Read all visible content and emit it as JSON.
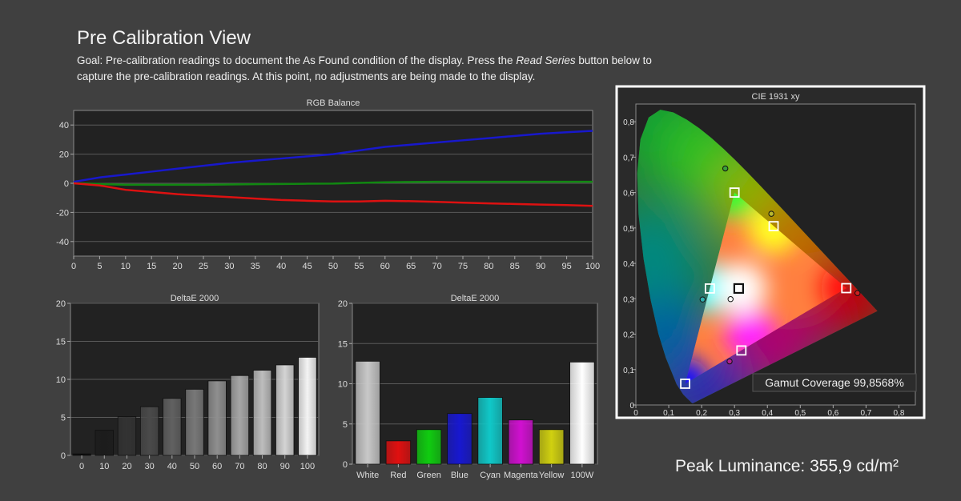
{
  "page": {
    "title": "Pre Calibration View",
    "goal_prefix": "Goal: Pre-calibration readings to document the As Found condition of the display. Press the ",
    "goal_emphasis": "Read Series",
    "goal_suffix": " button below to capture the pre-calibration readings. At this point, no adjustments are being made to the display.",
    "peak_luminance": "Peak Luminance: 355,9 cd/m²"
  },
  "colors": {
    "background": "#404040",
    "plot_bg": "#222222",
    "red": "#dd1111",
    "green": "#118811",
    "blue": "#1818cc"
  },
  "chart_data": [
    {
      "id": "rgb",
      "type": "line",
      "title": "RGB Balance",
      "x": [
        0,
        5,
        10,
        15,
        20,
        25,
        30,
        35,
        40,
        45,
        50,
        55,
        60,
        65,
        70,
        75,
        80,
        85,
        90,
        95,
        100
      ],
      "xticks": [
        0,
        5,
        10,
        15,
        20,
        25,
        30,
        35,
        40,
        45,
        50,
        55,
        60,
        65,
        70,
        75,
        80,
        85,
        90,
        95,
        100
      ],
      "xlim": [
        0,
        100
      ],
      "ylim": [
        -50,
        50
      ],
      "yticks": [
        40,
        20,
        0,
        -20,
        -40
      ],
      "ytick_labels": [
        "40",
        "20",
        "0",
        "-20",
        "-40"
      ],
      "grid": true,
      "series": [
        {
          "color": "#1818cc",
          "values": [
            1,
            4,
            6,
            8,
            10,
            12,
            14,
            15.5,
            17,
            18.5,
            20,
            22.5,
            25,
            26.5,
            28,
            29.5,
            31,
            32.5,
            34,
            35,
            36
          ]
        },
        {
          "color": "#118811",
          "values": [
            0,
            -0.5,
            -1,
            -1,
            -1,
            -1,
            -0.8,
            -0.6,
            -0.5,
            -0.3,
            -0.2,
            0.3,
            0.7,
            0.9,
            1,
            1,
            1,
            1,
            1,
            1,
            1
          ]
        },
        {
          "color": "#dd1111",
          "values": [
            0,
            -1.5,
            -4.5,
            -6,
            -7.5,
            -8.5,
            -9.5,
            -10.5,
            -11.5,
            -12,
            -12.5,
            -12.5,
            -12,
            -12.3,
            -12.8,
            -13.3,
            -13.8,
            -14.2,
            -14.6,
            -15,
            -15.5
          ]
        }
      ]
    },
    {
      "id": "grey",
      "type": "bar",
      "title": "DeltaE 2000",
      "categories": [
        "0",
        "10",
        "20",
        "30",
        "40",
        "50",
        "60",
        "70",
        "80",
        "90",
        "100"
      ],
      "values": [
        0.2,
        3.3,
        5.1,
        6.4,
        7.5,
        8.7,
        9.8,
        10.5,
        11.2,
        11.9,
        12.9
      ],
      "bar_colors": [
        "#080808",
        "#1c1c1c",
        "#333333",
        "#4a4a4a",
        "#616161",
        "#787878",
        "#8f8f8f",
        "#a6a6a6",
        "#bdbdbd",
        "#d4d4d4",
        "#f4f4f4"
      ],
      "ylim": [
        0,
        20
      ],
      "yticks": [
        0,
        5,
        10,
        15,
        20
      ],
      "ytick_labels": [
        "0",
        "5",
        "10",
        "15",
        "20"
      ],
      "grid": true
    },
    {
      "id": "color",
      "type": "bar",
      "title": "DeltaE 2000",
      "categories": [
        "White",
        "Red",
        "Green",
        "Blue",
        "Cyan",
        "Magenta",
        "Yellow",
        "100W"
      ],
      "values": [
        12.8,
        2.9,
        4.3,
        6.3,
        8.3,
        5.5,
        4.3,
        12.7
      ],
      "bar_colors": [
        "#c8c8c8",
        "#e01010",
        "#10cc10",
        "#1818d0",
        "#10c8c8",
        "#d010d0",
        "#d0d010",
        "#ffffff"
      ],
      "ylim": [
        0,
        20
      ],
      "yticks": [
        0,
        5,
        10,
        15,
        20
      ],
      "ytick_labels": [
        "0",
        "5",
        "10",
        "15",
        "20"
      ],
      "grid": true
    },
    {
      "id": "cie",
      "type": "scatter",
      "title": "CIE 1931 xy",
      "xlim": [
        0,
        0.85
      ],
      "ylim": [
        0,
        0.85
      ],
      "xticks": [
        0,
        0.1,
        0.2,
        0.3,
        0.4,
        0.5,
        0.6,
        0.7,
        0.8
      ],
      "xtick_labels": [
        "0",
        "0,1",
        "0,2",
        "0,3",
        "0,4",
        "0,5",
        "0,6",
        "0,7",
        "0,8"
      ],
      "yticks": [
        0,
        0.1,
        0.2,
        0.3,
        0.4,
        0.5,
        0.6,
        0.7,
        0.8
      ],
      "ytick_labels": [
        "0",
        "0,1",
        "0,2",
        "0,3",
        "0,4",
        "0,5",
        "0,6",
        "0,7",
        "0,8"
      ],
      "gamut_triangle": [
        [
          0.64,
          0.33
        ],
        [
          0.3,
          0.6
        ],
        [
          0.15,
          0.06
        ]
      ],
      "targets": [
        [
          0.64,
          0.33
        ],
        [
          0.3,
          0.6
        ],
        [
          0.15,
          0.06
        ],
        [
          0.225,
          0.329
        ],
        [
          0.321,
          0.154
        ],
        [
          0.419,
          0.505
        ],
        [
          0.3127,
          0.329
        ]
      ],
      "measured": [
        {
          "x": 0.674,
          "y": 0.316,
          "color": "#cc2020"
        },
        {
          "x": 0.272,
          "y": 0.668,
          "color": "#3aa03a"
        },
        {
          "x": 0.412,
          "y": 0.54,
          "color": "#b8b830"
        },
        {
          "x": 0.203,
          "y": 0.298,
          "color": "#30b0b0"
        },
        {
          "x": 0.288,
          "y": 0.299,
          "color": "#ffffff"
        },
        {
          "x": 0.285,
          "y": 0.123,
          "color": "#b02090"
        }
      ],
      "gamut_coverage": "Gamut Coverage 99,8568%"
    }
  ]
}
